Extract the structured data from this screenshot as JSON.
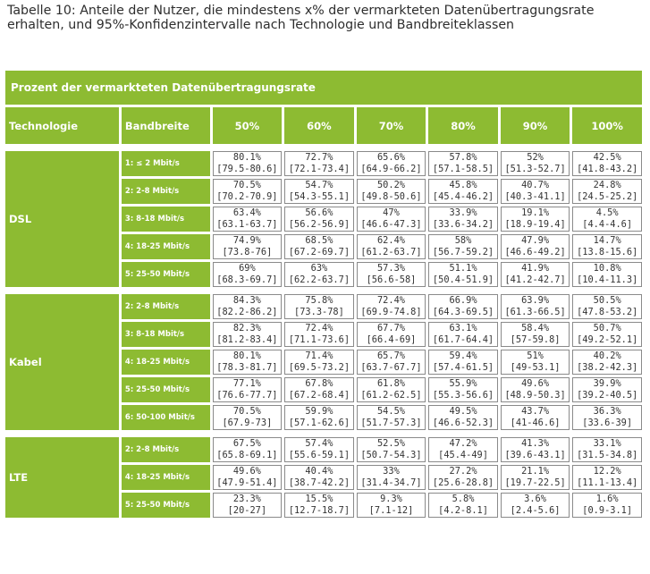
{
  "caption": "Tabelle 10: Anteile der Nutzer, die mindestens x% der vermarkteten Datenübertragungsrate erhalten, und 95%-Konfidenzintervalle nach Technologie und Bandbreiteklassen",
  "banner": "Prozent der vermarkteten Datenübertragungsrate",
  "headers": {
    "technologie": "Technologie",
    "bandbreite": "Bandbreite",
    "percents": [
      "50%",
      "60%",
      "70%",
      "80%",
      "90%",
      "100%"
    ]
  },
  "groups": [
    {
      "tech": "DSL",
      "rows": [
        {
          "band": "1: ≤ 2 Mbit/s",
          "cells": [
            {
              "v": "80.1%",
              "ci": "[79.5-80.6]"
            },
            {
              "v": "72.7%",
              "ci": "[72.1-73.4]"
            },
            {
              "v": "65.6%",
              "ci": "[64.9-66.2]"
            },
            {
              "v": "57.8%",
              "ci": "[57.1-58.5]"
            },
            {
              "v": "52%",
              "ci": "[51.3-52.7]"
            },
            {
              "v": "42.5%",
              "ci": "[41.8-43.2]"
            }
          ]
        },
        {
          "band": "2: 2-8 Mbit/s",
          "cells": [
            {
              "v": "70.5%",
              "ci": "[70.2-70.9]"
            },
            {
              "v": "54.7%",
              "ci": "[54.3-55.1]"
            },
            {
              "v": "50.2%",
              "ci": "[49.8-50.6]"
            },
            {
              "v": "45.8%",
              "ci": "[45.4-46.2]"
            },
            {
              "v": "40.7%",
              "ci": "[40.3-41.1]"
            },
            {
              "v": "24.8%",
              "ci": "[24.5-25.2]"
            }
          ]
        },
        {
          "band": "3: 8-18 Mbit/s",
          "cells": [
            {
              "v": "63.4%",
              "ci": "[63.1-63.7]"
            },
            {
              "v": "56.6%",
              "ci": "[56.2-56.9]"
            },
            {
              "v": "47%",
              "ci": "[46.6-47.3]"
            },
            {
              "v": "33.9%",
              "ci": "[33.6-34.2]"
            },
            {
              "v": "19.1%",
              "ci": "[18.9-19.4]"
            },
            {
              "v": "4.5%",
              "ci": "[4.4-4.6]"
            }
          ]
        },
        {
          "band": "4: 18-25 Mbit/s",
          "cells": [
            {
              "v": "74.9%",
              "ci": "[73.8-76]"
            },
            {
              "v": "68.5%",
              "ci": "[67.2-69.7]"
            },
            {
              "v": "62.4%",
              "ci": "[61.2-63.7]"
            },
            {
              "v": "58%",
              "ci": "[56.7-59.2]"
            },
            {
              "v": "47.9%",
              "ci": "[46.6-49.2]"
            },
            {
              "v": "14.7%",
              "ci": "[13.8-15.6]"
            }
          ]
        },
        {
          "band": "5: 25-50 Mbit/s",
          "cells": [
            {
              "v": "69%",
              "ci": "[68.3-69.7]"
            },
            {
              "v": "63%",
              "ci": "[62.2-63.7]"
            },
            {
              "v": "57.3%",
              "ci": "[56.6-58]"
            },
            {
              "v": "51.1%",
              "ci": "[50.4-51.9]"
            },
            {
              "v": "41.9%",
              "ci": "[41.2-42.7]"
            },
            {
              "v": "10.8%",
              "ci": "[10.4-11.3]"
            }
          ]
        }
      ]
    },
    {
      "tech": "Kabel",
      "rows": [
        {
          "band": "2: 2-8 Mbit/s",
          "cells": [
            {
              "v": "84.3%",
              "ci": "[82.2-86.2]"
            },
            {
              "v": "75.8%",
              "ci": "[73.3-78]"
            },
            {
              "v": "72.4%",
              "ci": "[69.9-74.8]"
            },
            {
              "v": "66.9%",
              "ci": "[64.3-69.5]"
            },
            {
              "v": "63.9%",
              "ci": "[61.3-66.5]"
            },
            {
              "v": "50.5%",
              "ci": "[47.8-53.2]"
            }
          ]
        },
        {
          "band": "3: 8-18 Mbit/s",
          "cells": [
            {
              "v": "82.3%",
              "ci": "[81.2-83.4]"
            },
            {
              "v": "72.4%",
              "ci": "[71.1-73.6]"
            },
            {
              "v": "67.7%",
              "ci": "[66.4-69]"
            },
            {
              "v": "63.1%",
              "ci": "[61.7-64.4]"
            },
            {
              "v": "58.4%",
              "ci": "[57-59.8]"
            },
            {
              "v": "50.7%",
              "ci": "[49.2-52.1]"
            }
          ]
        },
        {
          "band": "4: 18-25 Mbit/s",
          "cells": [
            {
              "v": "80.1%",
              "ci": "[78.3-81.7]"
            },
            {
              "v": "71.4%",
              "ci": "[69.5-73.2]"
            },
            {
              "v": "65.7%",
              "ci": "[63.7-67.7]"
            },
            {
              "v": "59.4%",
              "ci": "[57.4-61.5]"
            },
            {
              "v": "51%",
              "ci": "[49-53.1]"
            },
            {
              "v": "40.2%",
              "ci": "[38.2-42.3]"
            }
          ]
        },
        {
          "band": "5: 25-50 Mbit/s",
          "cells": [
            {
              "v": "77.1%",
              "ci": "[76.6-77.7]"
            },
            {
              "v": "67.8%",
              "ci": "[67.2-68.4]"
            },
            {
              "v": "61.8%",
              "ci": "[61.2-62.5]"
            },
            {
              "v": "55.9%",
              "ci": "[55.3-56.6]"
            },
            {
              "v": "49.6%",
              "ci": "[48.9-50.3]"
            },
            {
              "v": "39.9%",
              "ci": "[39.2-40.5]"
            }
          ]
        },
        {
          "band": "6: 50-100 Mbit/s",
          "cells": [
            {
              "v": "70.5%",
              "ci": "[67.9-73]"
            },
            {
              "v": "59.9%",
              "ci": "[57.1-62.6]"
            },
            {
              "v": "54.5%",
              "ci": "[51.7-57.3]"
            },
            {
              "v": "49.5%",
              "ci": "[46.6-52.3]"
            },
            {
              "v": "43.7%",
              "ci": "[41-46.6]"
            },
            {
              "v": "36.3%",
              "ci": "[33.6-39]"
            }
          ]
        }
      ]
    },
    {
      "tech": "LTE",
      "rows": [
        {
          "band": "2: 2-8 Mbit/s",
          "cells": [
            {
              "v": "67.5%",
              "ci": "[65.8-69.1]"
            },
            {
              "v": "57.4%",
              "ci": "[55.6-59.1]"
            },
            {
              "v": "52.5%",
              "ci": "[50.7-54.3]"
            },
            {
              "v": "47.2%",
              "ci": "[45.4-49]"
            },
            {
              "v": "41.3%",
              "ci": "[39.6-43.1]"
            },
            {
              "v": "33.1%",
              "ci": "[31.5-34.8]"
            }
          ]
        },
        {
          "band": "4: 18-25 Mbit/s",
          "cells": [
            {
              "v": "49.6%",
              "ci": "[47.9-51.4]"
            },
            {
              "v": "40.4%",
              "ci": "[38.7-42.2]"
            },
            {
              "v": "33%",
              "ci": "[31.4-34.7]"
            },
            {
              "v": "27.2%",
              "ci": "[25.6-28.8]"
            },
            {
              "v": "21.1%",
              "ci": "[19.7-22.5]"
            },
            {
              "v": "12.2%",
              "ci": "[11.1-13.4]"
            }
          ]
        },
        {
          "band": "5: 25-50 Mbit/s",
          "cells": [
            {
              "v": "23.3%",
              "ci": "[20-27]"
            },
            {
              "v": "15.5%",
              "ci": "[12.7-18.7]"
            },
            {
              "v": "9.3%",
              "ci": "[7.1-12]"
            },
            {
              "v": "5.8%",
              "ci": "[4.2-8.1]"
            },
            {
              "v": "3.6%",
              "ci": "[2.4-5.6]"
            },
            {
              "v": "1.6%",
              "ci": "[0.9-3.1]"
            }
          ]
        }
      ]
    }
  ]
}
